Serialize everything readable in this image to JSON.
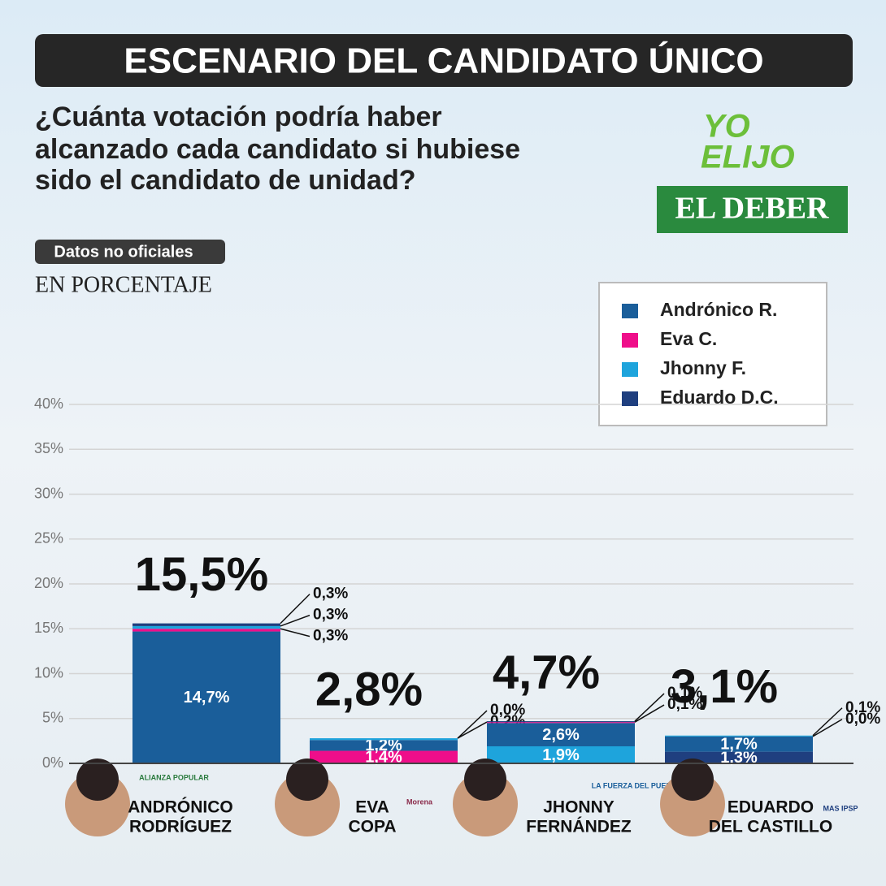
{
  "header": {
    "title": "ESCENARIO DEL CANDIDATO ÚNICO",
    "question": [
      "¿Cuánta votación podría haber",
      "alcanzado cada candidato si hubiese",
      "sido el candidato de unidad?"
    ],
    "badge": "Datos no oficiales",
    "unit_note": "EN PORCENTAJE",
    "logos": [
      "YO",
      "ELIJO",
      "EL DEBER"
    ]
  },
  "chart_data": {
    "type": "stacked_bar",
    "categories": [
      [
        "ANDRÓNICO",
        "RODRÍGUEZ"
      ],
      [
        "EVA",
        "COPA"
      ],
      [
        "JHONNY",
        "FERNÁNDEZ"
      ],
      [
        "EDUARDO",
        "DEL CASTILLO"
      ]
    ],
    "parties": [
      "ALIANZA POPULAR",
      "Morena",
      "LA FUERZA DEL PUEBLO",
      "MAS IPSP"
    ],
    "series": [
      {
        "name": "Andrónico R.",
        "color": "#1a5e9a",
        "values": [
          14.7,
          1.2,
          2.6,
          1.7
        ],
        "value_labels": [
          "14,7%",
          "1,2%",
          "2,6%",
          "1,7%"
        ]
      },
      {
        "name": "Eva C.",
        "color": "#ef0e8a",
        "values": [
          0.3,
          1.4,
          0.1,
          0.0
        ],
        "value_labels": [
          "0,3%",
          "1,4%",
          "0,1%",
          "0,0%"
        ]
      },
      {
        "name": "Jhonny F.",
        "color": "#1ea4dc",
        "values": [
          0.3,
          0.2,
          1.9,
          0.1
        ],
        "value_labels": [
          "0,3%",
          "0.2%",
          "1,9%",
          "0,1%"
        ]
      },
      {
        "name": "Eduardo D.C.",
        "color": "#1f3f7f",
        "values": [
          0.3,
          0.0,
          0.1,
          1.3
        ],
        "value_labels": [
          "0,3%",
          "0,0%",
          "0,1%",
          "1,3%"
        ]
      }
    ],
    "totals": [
      15.5,
      2.8,
      4.7,
      3.1
    ],
    "total_labels": [
      "15,5%",
      "2,8%",
      "4,7%",
      "3,1%"
    ],
    "ylim": [
      0,
      40
    ],
    "yticks": [
      {
        "value": 0,
        "label": "0%"
      },
      {
        "value": 5,
        "label": "5%"
      },
      {
        "value": 10,
        "label": "10%"
      },
      {
        "value": 15,
        "label": "15%"
      },
      {
        "value": 20,
        "label": "20%"
      },
      {
        "value": 25,
        "label": "25%"
      },
      {
        "value": 30,
        "label": "30%"
      },
      {
        "value": 35,
        "label": "35%"
      },
      {
        "value": 40,
        "label": "40%"
      }
    ],
    "grid": true,
    "legend": "top-right"
  }
}
